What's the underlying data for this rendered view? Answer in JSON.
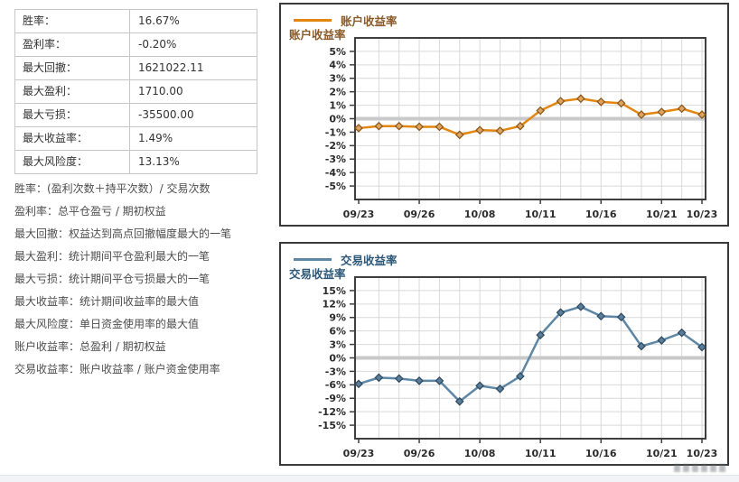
{
  "stats_table": {
    "rows": [
      {
        "label": "胜率：",
        "value": "16.67%"
      },
      {
        "label": "盈利率：",
        "value": "-0.20%"
      },
      {
        "label": "最大回撤：",
        "value": "1621022.11"
      },
      {
        "label": "最大盈利：",
        "value": "1710.00"
      },
      {
        "label": "最大亏损：",
        "value": "-35500.00"
      },
      {
        "label": "最大收益率：",
        "value": "1.49%"
      },
      {
        "label": "最大风险度：",
        "value": "13.13%"
      }
    ]
  },
  "notes": [
    "胜率：(盈利次数＋持平次数）/ 交易次数",
    "盈利率：总平仓盈亏 / 期初权益",
    "最大回撤：权益达到高点回撤幅度最大的一笔",
    "最大盈利：统计期间平仓盈利最大的一笔",
    "最大亏损：统计期间平仓亏损最大的一笔",
    "最大收益率：统计期间收益率的最大值",
    "最大风险度：单日资金使用率的最大值",
    "账户收益率：总盈利 / 期初权益",
    "交易收益率：账户收益率 / 账户资金使用率"
  ],
  "colors": {
    "grid": "#d9d9d9",
    "zero_line": "#c9c9c9",
    "plot_border": "#3f3f3f",
    "panel_border": "#3a3a3a",
    "table_border": "#c6c6c6",
    "text": "#333333",
    "note_text": "#4d4d4d",
    "tick_label": "#2b2b2b",
    "footer_strip": "#f1f3f6",
    "account_series": "#e2860f",
    "trade_series": "#5e87a5"
  },
  "chart_data": [
    {
      "type": "line",
      "id": "account",
      "axis_title": "账户收益率",
      "legend": "账户收益率",
      "line_color": "#e2860f",
      "marker_fill": "#dca45e",
      "marker_stroke": "#8a5416",
      "label_color": "#8a5a28",
      "ylim": [
        -6,
        6
      ],
      "y_ticks": [
        5,
        4,
        3,
        2,
        1,
        0,
        -1,
        -2,
        -3,
        -4,
        -5
      ],
      "y_tick_suffix": "%",
      "x_tick_labels": [
        "09/23",
        "09/26",
        "10/08",
        "10/11",
        "10/16",
        "10/21",
        "10/23"
      ],
      "x_tick_indices": [
        0,
        3,
        6,
        9,
        12,
        15,
        17
      ],
      "values": [
        -0.7,
        -0.55,
        -0.55,
        -0.6,
        -0.6,
        -1.2,
        -0.85,
        -0.9,
        -0.55,
        0.6,
        1.3,
        1.49,
        1.25,
        1.15,
        0.3,
        0.5,
        0.75,
        0.3
      ]
    },
    {
      "type": "line",
      "id": "trade",
      "axis_title": "交易收益率",
      "legend": "交易收益率",
      "line_color": "#5e87a5",
      "marker_fill": "#5a7e99",
      "marker_stroke": "#2c485f",
      "label_color": "#2e5878",
      "ylim": [
        -18,
        18
      ],
      "y_ticks": [
        15,
        12,
        9,
        6,
        3,
        0,
        -3,
        -6,
        -9,
        -12,
        -15
      ],
      "y_tick_suffix": "%",
      "x_tick_labels": [
        "09/23",
        "09/26",
        "10/08",
        "10/11",
        "10/16",
        "10/21",
        "10/23"
      ],
      "x_tick_indices": [
        0,
        3,
        6,
        9,
        12,
        15,
        17
      ],
      "values": [
        -5.8,
        -4.4,
        -4.6,
        -5.1,
        -5.1,
        -9.7,
        -6.2,
        -6.9,
        -4.1,
        5.1,
        10.1,
        11.4,
        9.3,
        9.1,
        2.6,
        3.9,
        5.6,
        2.4
      ]
    }
  ]
}
